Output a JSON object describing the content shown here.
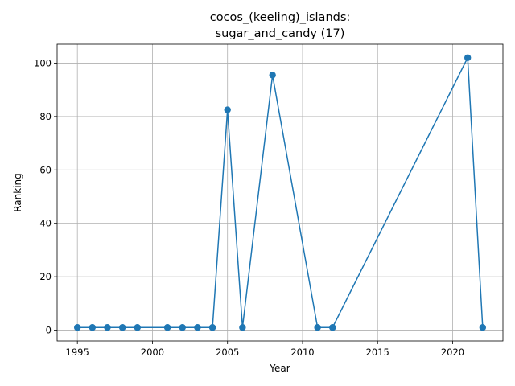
{
  "chart_data": {
    "type": "line",
    "title_lines": [
      "cocos_(keeling)_islands:",
      "sugar_and_candy (17)"
    ],
    "xlabel": "Year",
    "ylabel": "Ranking",
    "xlim": [
      1993.65,
      2023.35
    ],
    "ylim": [
      -4.05,
      107.05
    ],
    "xticks": [
      1995,
      2000,
      2005,
      2010,
      2015,
      2020
    ],
    "yticks": [
      0,
      20,
      40,
      60,
      80,
      100
    ],
    "grid": true,
    "legend": "none",
    "series": [
      {
        "color": "#1f77b4",
        "marker": "circle",
        "x": [
          1995,
          1996,
          1997,
          1998,
          1999,
          2001,
          2002,
          2003,
          2004,
          2005,
          2006,
          2008,
          2011,
          2012,
          2021,
          2022
        ],
        "y": [
          1,
          1,
          1,
          1,
          1,
          1,
          1,
          1,
          1,
          82.5,
          1,
          95.5,
          1,
          1,
          102,
          1
        ]
      }
    ]
  }
}
